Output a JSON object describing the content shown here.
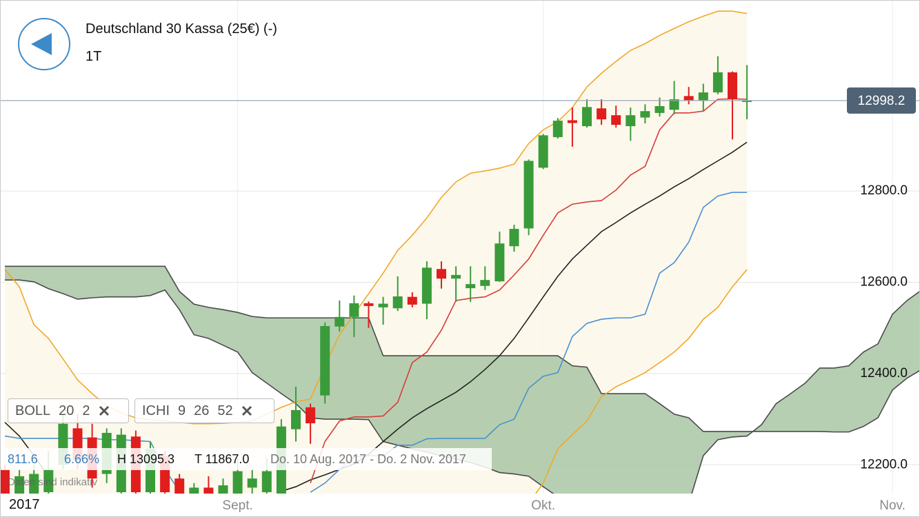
{
  "header": {
    "title": "Deutschland 30 Kassa (25€) (-)",
    "interval": "1T"
  },
  "chart_data": {
    "type": "candlestick",
    "start_label": "2017",
    "categories": [
      null,
      null,
      null,
      null,
      null,
      null,
      null,
      null,
      null,
      null,
      null,
      null,
      null,
      null,
      null,
      null,
      "Sept.",
      null,
      null,
      null,
      null,
      null,
      null,
      null,
      null,
      null,
      null,
      null,
      null,
      null,
      null,
      null,
      null,
      null,
      null,
      null,
      null,
      "Okt.",
      null,
      null,
      null,
      null,
      null,
      null,
      null,
      null,
      null,
      null,
      null,
      null,
      null,
      null,
      null,
      null,
      null,
      null,
      null,
      null,
      null,
      null,
      null,
      "Nov.",
      null,
      null
    ],
    "open": [
      12190,
      12130,
      12120,
      12140,
      12200,
      12280,
      12260,
      12180,
      12140,
      12262,
      12140,
      12220,
      12170,
      12110,
      12150,
      12130,
      12120,
      12150,
      12140,
      12120,
      12278,
      12326,
      12352,
      12503,
      12524,
      12554,
      12545,
      12543,
      12568,
      12553,
      12629,
      12608,
      12587,
      12592,
      12602,
      12679,
      12718,
      12851,
      12918,
      12955,
      12942,
      12981,
      12966,
      12942,
      12961,
      12971,
      12978,
      13008,
      12998,
      13016,
      13060,
      12995,
      null,
      null,
      null,
      null,
      null,
      null,
      null,
      null,
      null,
      null,
      null,
      null
    ],
    "high": [
      12200,
      12190,
      12200,
      12230,
      12311,
      12311,
      12290,
      12280,
      12280,
      12275,
      12250,
      12230,
      12180,
      12160,
      12175,
      12170,
      12215,
      12190,
      12215,
      12300,
      12371,
      12334,
      12512,
      12560,
      12571,
      12558,
      12568,
      12613,
      12578,
      12646,
      12646,
      12635,
      12635,
      12635,
      12711,
      12726,
      12869,
      12925,
      12960,
      12983,
      13001,
      13001,
      12987,
      12983,
      12990,
      13005,
      13041,
      13028,
      13035,
      13095.3,
      13062,
      13076,
      null,
      null,
      null,
      null,
      null,
      null,
      null,
      null,
      null,
      null,
      null,
      null
    ],
    "low": [
      12100,
      12110,
      12100,
      12130,
      12190,
      12190,
      12150,
      12160,
      12120,
      12120,
      12120,
      12110,
      12090,
      12090,
      12110,
      12100,
      12100,
      12120,
      12120,
      12100,
      12251,
      12246,
      12334,
      12492,
      12480,
      12500,
      12507,
      12537,
      12545,
      12519,
      12586,
      12557,
      12557,
      12583,
      12601,
      12667,
      12703,
      12848,
      12915,
      12897,
      12939,
      12945,
      12939,
      12910,
      12948,
      12963,
      12968,
      12990,
      12975,
      13012,
      12913,
      12957,
      null,
      null,
      null,
      null,
      null,
      null,
      null,
      null,
      null,
      null,
      null,
      null
    ],
    "close": [
      12120,
      12175,
      12180,
      12190,
      12290,
      12210,
      12170,
      12270,
      12266,
      12140,
      12235,
      12140,
      12110,
      12150,
      12130,
      12155,
      12186,
      12170,
      12186,
      12284,
      12320,
      12291,
      12504,
      12524,
      12554,
      12548,
      12553,
      12569,
      12551,
      12632,
      12608,
      12616,
      12596,
      12605,
      12685,
      12717,
      12866,
      12922,
      12954,
      12949,
      12984,
      12957,
      12945,
      12966,
      12975,
      12986,
      13001,
      12998,
      13016,
      13060,
      13001,
      12998.2,
      null,
      null,
      null,
      null,
      null,
      null,
      null,
      null,
      null,
      null,
      null,
      null
    ],
    "up_color": "#3a9b3a",
    "down_color": "#e21d1d",
    "ylim": [
      12137,
      13217
    ],
    "yticks": [
      {
        "value": 12200,
        "label": "12200.0"
      },
      {
        "value": 12400,
        "label": "12400.0"
      },
      {
        "value": 12600,
        "label": "12600.0"
      },
      {
        "value": 12800,
        "label": "12800.0"
      }
    ],
    "grid": true,
    "band_fill": "#fdf7ea",
    "lines": [
      {
        "color": "#f0a82a",
        "values": [
          12628,
          12590,
          12507,
          12477,
          12432,
          12386,
          12356,
          12329,
          12314,
          12303,
          12299,
          12296,
          12293,
          12290,
          12290,
          12291,
          12293,
          12296,
          12311,
          12326,
          12338,
          12344,
          12417,
          12485,
          12530,
          12575,
          12620,
          12670,
          12703,
          12741,
          12786,
          12820,
          12839,
          12844,
          12850,
          12859,
          12904,
          12934,
          12952,
          12983,
          13028,
          13058,
          13084,
          13108,
          13123,
          13141,
          13156,
          13171,
          13183,
          13194,
          13194,
          13189,
          null,
          null,
          null,
          null,
          null,
          null,
          null,
          null,
          null,
          null,
          null,
          null
        ]
      },
      {
        "color": "#f0a82a",
        "values": [
          null,
          null,
          null,
          null,
          null,
          null,
          null,
          null,
          null,
          null,
          null,
          null,
          null,
          null,
          null,
          null,
          null,
          null,
          null,
          null,
          null,
          null,
          null,
          null,
          null,
          null,
          null,
          null,
          null,
          null,
          null,
          null,
          null,
          null,
          null,
          null,
          12115,
          12160,
          12235,
          12266,
          12296,
          12349,
          12371,
          12386,
          12402,
          12424,
          12447,
          12477,
          12519,
          12545,
          12590,
          12628,
          null,
          null,
          null,
          null,
          null,
          null,
          null,
          null,
          null,
          null,
          null,
          null
        ]
      },
      {
        "color": "#222222",
        "values": [
          12293,
          12263,
          12220,
          12175,
          null,
          null,
          null,
          null,
          null,
          null,
          null,
          null,
          null,
          null,
          null,
          null,
          null,
          null,
          null,
          12142,
          12152,
          12167,
          12178,
          12190,
          12202,
          12223,
          12251,
          12278,
          12303,
          12323,
          12341,
          12359,
          12382,
          12409,
          12439,
          12477,
          12522,
          12568,
          12613,
          12651,
          12681,
          12711,
          12731,
          12752,
          12771,
          12789,
          12809,
          12827,
          12847,
          12866,
          12885,
          12907,
          null,
          null,
          null,
          null,
          null,
          null,
          null,
          null,
          null,
          null,
          null,
          null
        ]
      },
      {
        "color": "#d83a3a",
        "values": [
          null,
          null,
          null,
          null,
          null,
          null,
          null,
          null,
          null,
          null,
          null,
          null,
          null,
          null,
          null,
          null,
          null,
          null,
          null,
          null,
          null,
          12160,
          12251,
          12296,
          12305,
          12305,
          12307,
          12337,
          12424,
          12447,
          12495,
          12560,
          12565,
          12568,
          12583,
          12616,
          12651,
          12703,
          12752,
          12771,
          12776,
          12779,
          12802,
          12835,
          12854,
          12934,
          12971,
          12971,
          12975,
          13001,
          13002,
          13001,
          null,
          null,
          null,
          null,
          null,
          null,
          null,
          null,
          null,
          null,
          null,
          null
        ]
      },
      {
        "color": "#4a90d0",
        "values": [
          12263,
          12258,
          12258,
          12258,
          12258,
          12258,
          12258,
          12255,
          12255,
          12253,
          12251,
          12190,
          12142,
          null,
          null,
          null,
          null,
          null,
          null,
          null,
          null,
          12140,
          12160,
          12190,
          12217,
          12220,
          12220,
          12243,
          12243,
          12257,
          12258,
          12258,
          12258,
          12258,
          12288,
          12300,
          12368,
          12394,
          12402,
          12481,
          12510,
          12519,
          12522,
          12522,
          12530,
          12620,
          12643,
          12688,
          12764,
          12789,
          12797,
          12797,
          null,
          null,
          null,
          null,
          null,
          null,
          null,
          null,
          null,
          null,
          null,
          null
        ]
      }
    ],
    "cloud": {
      "fill": "#a9c7a5",
      "edge": "#4a4a4a",
      "span_a": [
        12635,
        12635,
        12635,
        12635,
        12635,
        12635,
        12635,
        12635,
        12635,
        12635,
        12635,
        12635,
        12580,
        12552,
        12545,
        12540,
        12534,
        12525,
        12522,
        12522,
        12522,
        12522,
        12522,
        12522,
        12522,
        12522,
        12439,
        12439,
        12439,
        12439,
        12439,
        12439,
        12439,
        12439,
        12439,
        12439,
        12439,
        12439,
        12439,
        12417,
        12414,
        12356,
        12356,
        12356,
        12356,
        12334,
        12311,
        12303,
        12273,
        12273,
        12273,
        12273,
        12273,
        12273,
        12273,
        12273,
        12273,
        12272,
        12272,
        12284,
        12303,
        12364,
        12390,
        12409
      ],
      "span_b": [
        12605,
        12605,
        12601,
        12586,
        12575,
        12563,
        12566,
        12568,
        12568,
        12568,
        12571,
        12583,
        12540,
        12485,
        12477,
        12462,
        12447,
        12402,
        12379,
        12356,
        12334,
        12303,
        12300,
        12300,
        12300,
        12299,
        12251,
        12243,
        12235,
        12228,
        12220,
        12213,
        12205,
        12195,
        12183,
        12180,
        12175,
        12152,
        12130,
        12115,
        12100,
        12092,
        12085,
        12082,
        12082,
        12082,
        12085,
        12115,
        12220,
        12255,
        12261,
        12263,
        12288,
        12334,
        12356,
        12379,
        12412,
        12412,
        12417,
        12447,
        12465,
        12530,
        12560,
        12583
      ]
    },
    "price_line_color": "#9aa8b5",
    "price_box_color": "#4f6276",
    "indicators": [
      {
        "name": "BOLL",
        "params": [
          20,
          2
        ]
      },
      {
        "name": "ICHI",
        "params": [
          9,
          26,
          52
        ]
      }
    ],
    "stats": {
      "range": "811.6",
      "change": "6.66%",
      "high": "H 13095.3",
      "low": "T 11867.0",
      "period": "Do. 10 Aug. 2017 - Do. 2 Nov. 2017"
    },
    "footnote": "Daten sind indikativ"
  }
}
